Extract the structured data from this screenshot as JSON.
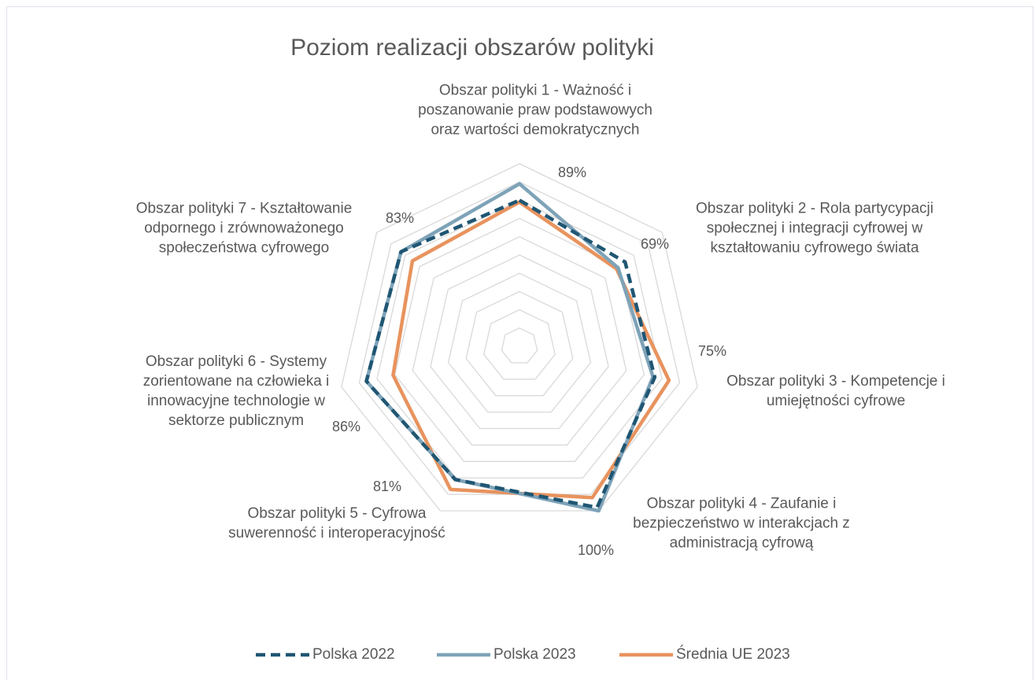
{
  "chart_data": {
    "type": "radar",
    "title": "Poziom realizacji obszarów polityki",
    "categories": [
      "Obszar polityki 1 - Ważność i poszanowanie praw podstawowych oraz wartości demokratycznych",
      "Obszar polityki 2 - Rola partycypacji społecznej i integracji cyfrowej w kształtowaniu cyfrowego świata",
      "Obszar polityki 3 - Kompetencje i umiejętności cyfrowe",
      "Obszar polityki 4 - Zaufanie i bezpieczeństwo w interakcjach z administracją cyfrową",
      "Obszar polityki 5 - Cyfrowa suwerenność i interoperacyjność",
      "Obszar polityki 6 - Systemy zorientowane na człowieka i innowacyjne technologie w sektorze publicznym",
      "Obszar polityki 7 - Kształtowanie odpornego i zrównoważonego społeczeństwa cyfrowego"
    ],
    "series": [
      {
        "name": "Polska 2022",
        "color": "#1f5673",
        "dashed": true,
        "values": [
          80,
          74,
          76,
          98,
          81,
          86,
          83
        ]
      },
      {
        "name": "Polska 2023",
        "color": "#7ea3b8",
        "values": [
          89,
          69,
          75,
          100,
          81,
          86,
          83
        ],
        "value_labels": [
          "89%",
          "69%",
          "75%",
          "100%",
          "81%",
          "86%",
          "83%"
        ]
      },
      {
        "name": "Średnia UE 2023",
        "color": "#e8935e",
        "values": [
          79,
          68,
          84,
          92,
          87,
          71,
          75
        ]
      }
    ],
    "ylim": [
      0,
      100
    ],
    "yticks": [
      0,
      10,
      20,
      30,
      40,
      50,
      60,
      70,
      80,
      90,
      100
    ],
    "grid": true,
    "legend": "bottom"
  }
}
